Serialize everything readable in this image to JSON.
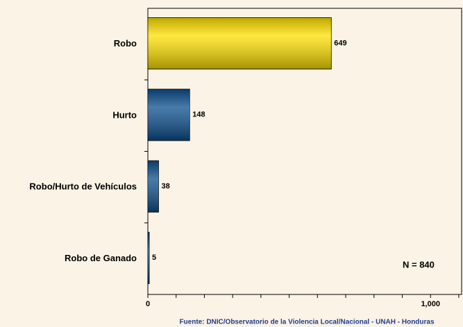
{
  "chart_data": {
    "type": "bar",
    "orientation": "horizontal",
    "categories": [
      "Robo",
      "Hurto",
      "Robo/Hurto de Vehículos",
      "Robo de Ganado"
    ],
    "values": [
      649,
      148,
      38,
      5
    ],
    "colors": [
      "#ffe000",
      "#0b4f8e",
      "#0b4f8e",
      "#0b4f8e"
    ],
    "xlim": [
      0,
      1110
    ],
    "xticks": [
      0,
      {
        "value": 1000,
        "label": "1,000"
      }
    ],
    "xticks_minor": [
      100,
      200,
      300,
      400,
      500,
      600,
      700,
      800,
      900,
      1100
    ],
    "annotation": "N = 840",
    "source": "Fuente: DNIC/Observatorio de la Violencia Local/Nacional - UNAH - Honduras"
  }
}
